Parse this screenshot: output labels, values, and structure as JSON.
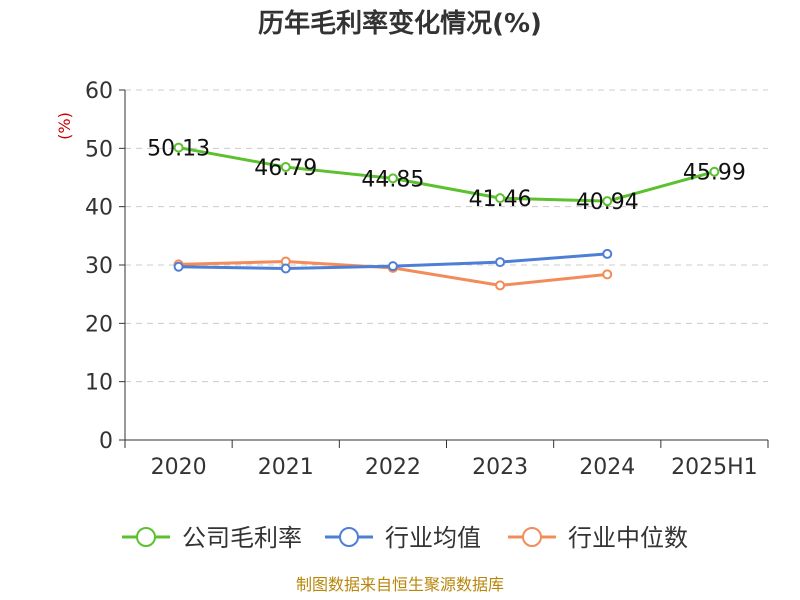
{
  "chart_data": {
    "type": "line",
    "title": "历年毛利率变化情况(%)",
    "ylabel": "(%)",
    "xlabel": "",
    "categories": [
      "2020",
      "2021",
      "2022",
      "2023",
      "2024",
      "2025H1"
    ],
    "ylim": [
      0,
      60
    ],
    "yticks": [
      0,
      10,
      20,
      30,
      40,
      50,
      60
    ],
    "grid": true,
    "legend_position": "bottom",
    "series": [
      {
        "name": "公司毛利率",
        "color": "#5cc12e",
        "values": [
          50.13,
          46.79,
          44.85,
          41.46,
          40.94,
          45.99
        ],
        "labels": [
          "50.13",
          "46.79",
          "44.85",
          "41.46",
          "40.94",
          "45.99"
        ]
      },
      {
        "name": "行业均值",
        "color": "#4e7fd6",
        "values": [
          29.7,
          29.4,
          29.8,
          30.5,
          31.9,
          null
        ]
      },
      {
        "name": "行业中位数",
        "color": "#f28c5a",
        "values": [
          30.1,
          30.6,
          29.5,
          26.5,
          28.4,
          null
        ]
      }
    ]
  },
  "source": "制图数据来自恒生聚源数据库"
}
